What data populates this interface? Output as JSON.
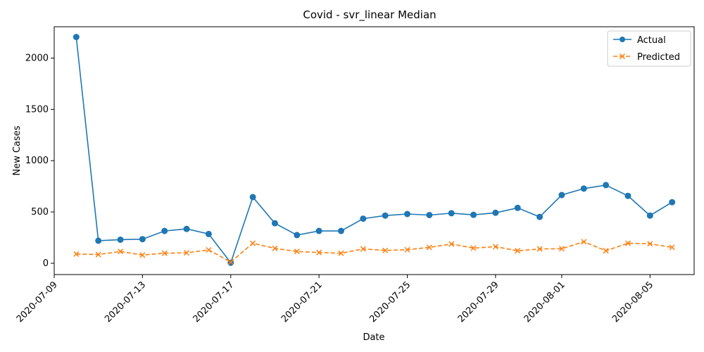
{
  "chart_data": {
    "type": "line",
    "title": "Covid - svr_linear Median",
    "xlabel": "Date",
    "ylabel": "New Cases",
    "x": [
      "2020-07-10",
      "2020-07-11",
      "2020-07-12",
      "2020-07-13",
      "2020-07-14",
      "2020-07-15",
      "2020-07-16",
      "2020-07-17",
      "2020-07-18",
      "2020-07-19",
      "2020-07-20",
      "2020-07-21",
      "2020-07-22",
      "2020-07-23",
      "2020-07-24",
      "2020-07-25",
      "2020-07-26",
      "2020-07-27",
      "2020-07-28",
      "2020-07-29",
      "2020-07-30",
      "2020-07-31",
      "2020-08-01",
      "2020-08-02",
      "2020-08-03",
      "2020-08-04",
      "2020-08-05",
      "2020-08-06"
    ],
    "series": [
      {
        "name": "Actual",
        "color": "#1f77b4",
        "marker": "circle",
        "linestyle": "solid",
        "values": [
          2205,
          220,
          230,
          235,
          315,
          335,
          285,
          5,
          645,
          390,
          275,
          315,
          315,
          435,
          465,
          480,
          470,
          488,
          472,
          492,
          540,
          452,
          665,
          728,
          762,
          657,
          465,
          595
        ]
      },
      {
        "name": "Predicted",
        "color": "#ff7f0e",
        "marker": "x",
        "linestyle": "dashed",
        "values": [
          90,
          85,
          115,
          80,
          98,
          102,
          130,
          12,
          195,
          145,
          115,
          105,
          98,
          140,
          125,
          132,
          155,
          188,
          148,
          162,
          122,
          140,
          142,
          210,
          122,
          195,
          190,
          155
        ]
      }
    ],
    "xlim": [
      "2020-07-09T00:00",
      "2020-08-07T00:00"
    ],
    "ylim": [
      -110,
      2305
    ],
    "xticks": [
      "2020-07-09",
      "2020-07-13",
      "2020-07-17",
      "2020-07-21",
      "2020-07-25",
      "2020-07-29",
      "2020-08-01",
      "2020-08-05"
    ],
    "yticks": [
      0,
      500,
      1000,
      1500,
      2000
    ],
    "grid": false,
    "legend_position": "top-right"
  }
}
